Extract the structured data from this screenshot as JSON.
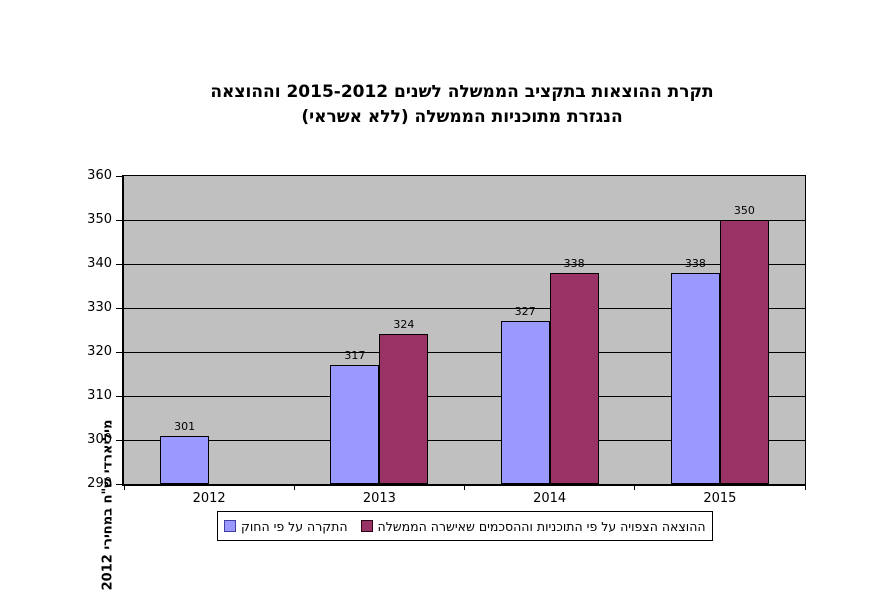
{
  "title": {
    "line1": "תקרת ההוצאות בתקציב הממשלה לשנים 2015-2012 וההוצאה",
    "line2": "הנגזרת מתוכניות הממשלה (ללא אשראי)"
  },
  "chart_data": {
    "type": "bar",
    "categories": [
      "2012",
      "2013",
      "2014",
      "2015"
    ],
    "series": [
      {
        "name": "התקרה על פי החוק",
        "color": "#9999FF",
        "values": [
          301,
          317,
          327,
          338
        ]
      },
      {
        "name": "ההוצאה הצפויה על פי התוכניות וההסכמים שאישרה הממשלה",
        "color": "#993366",
        "values": [
          null,
          324,
          338,
          350
        ]
      }
    ],
    "ylabel": "מיליארדי ש\"ח במחירי 2012",
    "ylim": [
      290,
      360
    ],
    "ytick_step": 10,
    "grid": true,
    "plot_background": "#C0C0C0",
    "legend_position": "bottom",
    "data_labels": true
  }
}
